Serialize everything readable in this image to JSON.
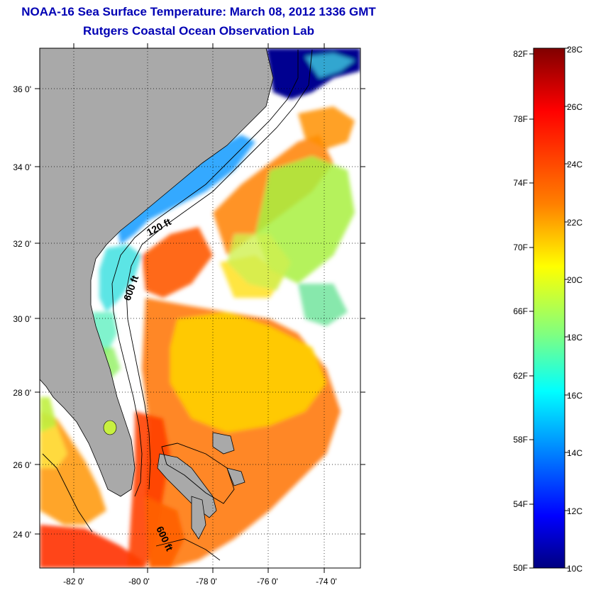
{
  "header": {
    "title": "NOAA-16 Sea Surface Temperature:  March 08, 2012 1336 GMT",
    "subtitle": "Rutgers Coastal Ocean Observation Lab"
  },
  "map": {
    "lat_ticks": [
      "36 0'",
      "34 0'",
      "32 0'",
      "30 0'",
      "28 0'",
      "26 0'",
      "24 0'"
    ],
    "lon_ticks": [
      "-82 0'",
      "-80 0'",
      "-78 0'",
      "-76 0'",
      "-74 0'"
    ],
    "contour_labels": [
      "120 ft",
      "600 ft",
      "600 ft"
    ],
    "land_color": "#a9a9a9",
    "cloud_color": "#ffffff"
  },
  "colorbar": {
    "fahrenheit_labels": [
      "82F",
      "78F",
      "74F",
      "70F",
      "66F",
      "62F",
      "58F",
      "54F",
      "50F"
    ],
    "celsius_labels": [
      "28C",
      "26C",
      "24C",
      "22C",
      "20C",
      "18C",
      "16C",
      "14C",
      "12C",
      "10C"
    ],
    "gradient_colors": [
      "#800000",
      "#ff0000",
      "#ff8000",
      "#ffff00",
      "#80ff80",
      "#00ffff",
      "#0080ff",
      "#0000ff",
      "#000080"
    ]
  }
}
